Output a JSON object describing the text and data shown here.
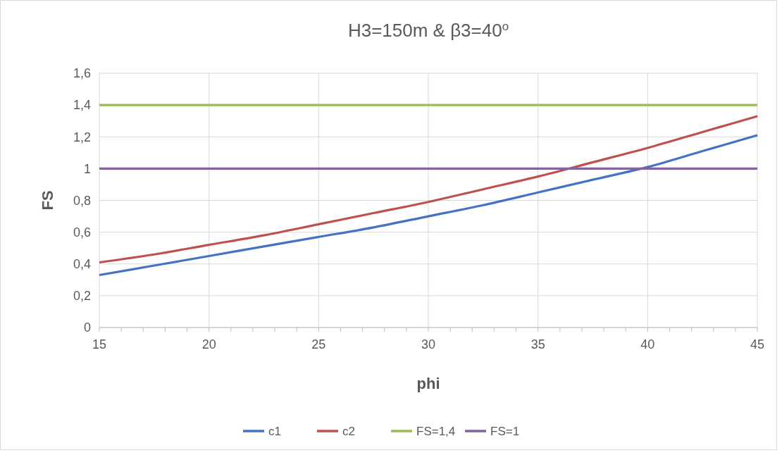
{
  "chart_data": {
    "type": "line",
    "title": "H3=150m & β3=40$^{o}$",
    "xlabel": "phi",
    "ylabel": "FS",
    "xlim": [
      15,
      45
    ],
    "ylim": [
      0,
      1.6
    ],
    "xticks": [
      15,
      {
        "value": 16,
        "label": null
      },
      {
        "value": 17,
        "label": null
      },
      {
        "value": 18,
        "label": null
      },
      {
        "value": 19,
        "label": null
      },
      20,
      {
        "value": 21,
        "label": null
      },
      {
        "value": 22,
        "label": null
      },
      {
        "value": 23,
        "label": null
      },
      {
        "value": 24,
        "label": null
      },
      25,
      {
        "value": 26,
        "label": null
      },
      {
        "value": 27,
        "label": null
      },
      {
        "value": 28,
        "label": null
      },
      {
        "value": 29,
        "label": null
      },
      30,
      {
        "value": 31,
        "label": null
      },
      {
        "value": 32,
        "label": null
      },
      {
        "value": 33,
        "label": null
      },
      {
        "value": 34,
        "label": null
      },
      35,
      {
        "value": 36,
        "label": null
      },
      {
        "value": 37,
        "label": null
      },
      {
        "value": 38,
        "label": null
      },
      {
        "value": 39,
        "label": null
      },
      40,
      {
        "value": 41,
        "label": null
      },
      {
        "value": 42,
        "label": null
      },
      {
        "value": 43,
        "label": null
      },
      {
        "value": 44,
        "label": null
      },
      45
    ],
    "yticks": [
      0,
      {
        "value": 0.2,
        "label": "0,2"
      },
      {
        "value": 0.4,
        "label": "0,4"
      },
      {
        "value": 0.6,
        "label": "0,6"
      },
      {
        "value": 0.8,
        "label": "0,8"
      },
      1,
      {
        "value": 1.2,
        "label": "1,2"
      },
      {
        "value": 1.4,
        "label": "1,4"
      },
      {
        "value": 1.6,
        "label": "1,6"
      }
    ],
    "grid": true,
    "legend": "bottom",
    "marker": "none",
    "line_style": "solid",
    "series": [
      {
        "name": "c1",
        "color": "#4472c4",
        "x": [
          15,
          17.5,
          20,
          22.5,
          25,
          27.5,
          30,
          32.5,
          35,
          37.5,
          40,
          42.5,
          45
        ],
        "values": [
          0.33,
          0.39,
          0.45,
          0.51,
          0.57,
          0.63,
          0.7,
          0.77,
          0.85,
          0.93,
          1.01,
          1.11,
          1.21
        ]
      },
      {
        "name": "c2",
        "color": "#c0504d",
        "x": [
          15,
          17.5,
          20,
          22.5,
          25,
          27.5,
          30,
          32.5,
          35,
          37.5,
          40,
          42.5,
          45
        ],
        "values": [
          0.41,
          0.46,
          0.52,
          0.58,
          0.65,
          0.72,
          0.79,
          0.87,
          0.95,
          1.04,
          1.13,
          1.23,
          1.33
        ]
      },
      {
        "name": "FS=1,4",
        "color": "#9bbb59",
        "x": [
          15,
          45
        ],
        "values": [
          1.4,
          1.4
        ]
      },
      {
        "name": "FS=1",
        "color": "#8064a2",
        "x": [
          15,
          45
        ],
        "values": [
          1,
          1
        ]
      }
    ]
  }
}
